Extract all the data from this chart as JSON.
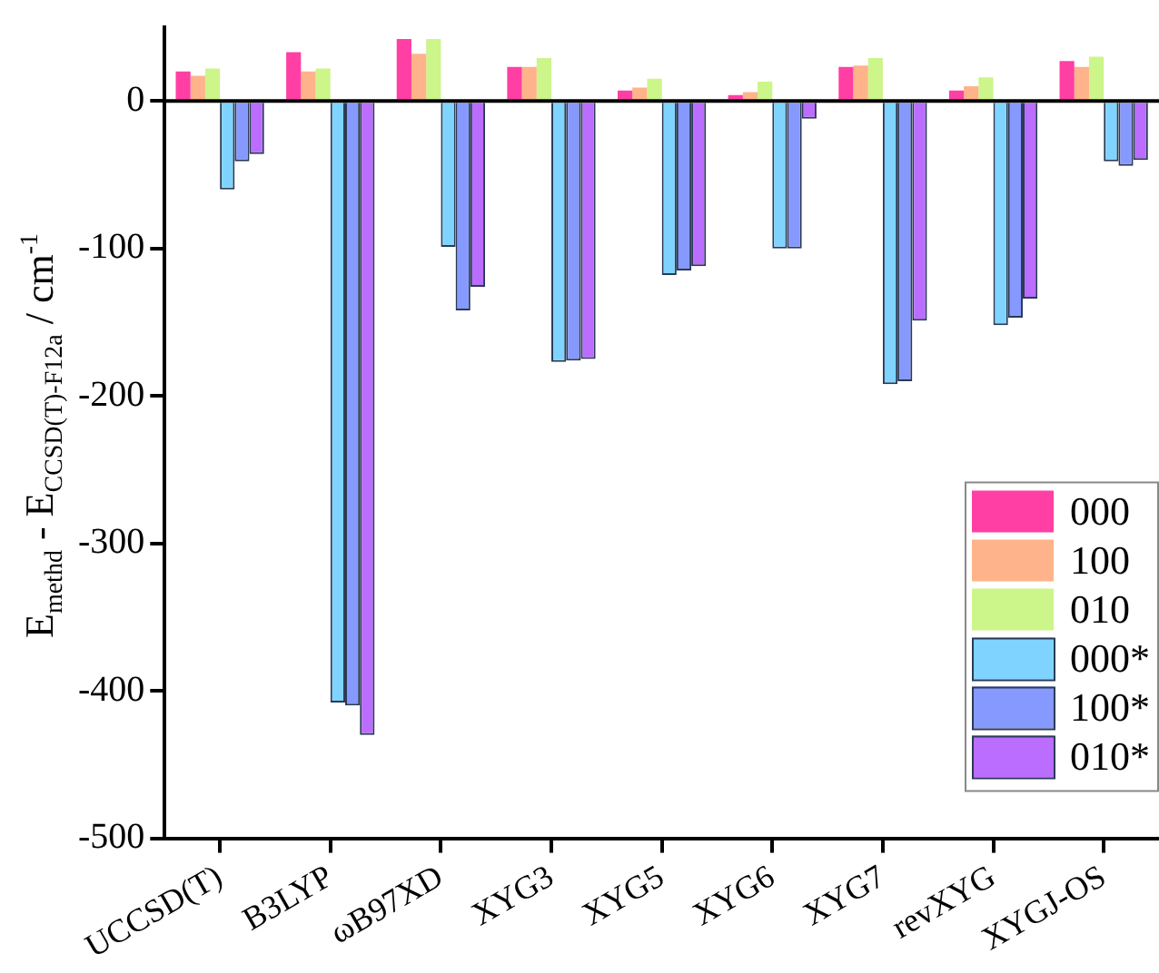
{
  "chart_data": {
    "type": "bar",
    "ylabel": "E$_{methd}$ - E$_{CCSD(T)-F12a}$ / cm$^{-1}$",
    "categories": [
      "UCCSD(T)",
      "B3LYP",
      "ωB97XD",
      "XYG3",
      "XYG5",
      "XYG6",
      "XYG7",
      "revXYG",
      "XYGJ-OS"
    ],
    "series": [
      {
        "name": "000",
        "color": "#ff3fa4",
        "values": [
          20,
          33,
          42,
          23,
          7,
          4,
          23,
          7,
          27
        ]
      },
      {
        "name": "100",
        "color": "#ffb38a",
        "values": [
          17,
          20,
          32,
          23,
          9,
          6,
          24,
          10,
          23
        ]
      },
      {
        "name": "010",
        "color": "#ccf58a",
        "values": [
          22,
          22,
          42,
          29,
          15,
          13,
          29,
          16,
          30
        ]
      },
      {
        "name": "000*",
        "color": "#7fd4ff",
        "values": [
          -60,
          -408,
          -99,
          -177,
          -118,
          -100,
          -192,
          -152,
          -41
        ]
      },
      {
        "name": "100*",
        "color": "#8699ff",
        "values": [
          -41,
          -410,
          -142,
          -176,
          -115,
          -100,
          -190,
          -147,
          -44
        ]
      },
      {
        "name": "010*",
        "color": "#bb6dff",
        "values": [
          -36,
          -430,
          -126,
          -175,
          -112,
          -12,
          -149,
          -134,
          -40
        ]
      }
    ],
    "ylim": [
      -500,
      50
    ],
    "yticks": [
      -500,
      -400,
      -300,
      -200,
      -100,
      0
    ],
    "ref_lines": [
      {
        "axis": "y",
        "value": 0,
        "color": "#000000"
      }
    ],
    "legend": "right"
  }
}
